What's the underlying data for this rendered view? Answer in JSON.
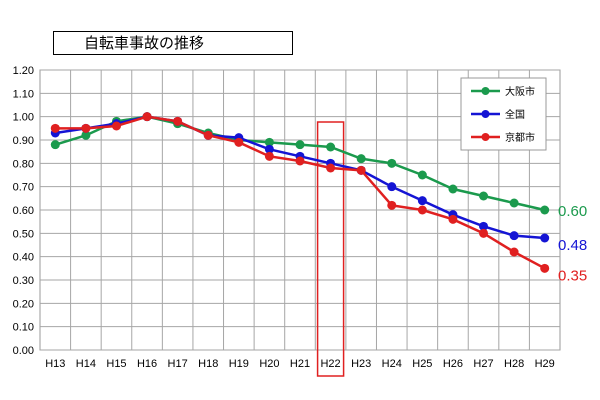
{
  "chart_data": {
    "type": "line",
    "title": "自転車事故の推移",
    "categories": [
      "H13",
      "H14",
      "H15",
      "H16",
      "H17",
      "H18",
      "H19",
      "H20",
      "H21",
      "H22",
      "H23",
      "H24",
      "H25",
      "H26",
      "H27",
      "H28",
      "H29"
    ],
    "ylim": [
      0,
      1.2
    ],
    "yticks": [
      "0.00",
      "0.10",
      "0.20",
      "0.30",
      "0.40",
      "0.50",
      "0.60",
      "0.70",
      "0.80",
      "0.90",
      "1.00",
      "1.10",
      "1.20"
    ],
    "grid": true,
    "legend_position": "top-right",
    "highlight_category": "H22",
    "series": [
      {
        "name": "大阪市",
        "color": "#1b9a4d",
        "end_label": "0.60",
        "values": [
          0.88,
          0.92,
          0.98,
          1.0,
          0.97,
          0.93,
          0.9,
          0.89,
          0.88,
          0.87,
          0.82,
          0.8,
          0.75,
          0.69,
          0.66,
          0.63,
          0.6
        ]
      },
      {
        "name": "全国",
        "color": "#1414d4",
        "end_label": "0.48",
        "values": [
          0.93,
          0.95,
          0.97,
          1.0,
          0.98,
          0.92,
          0.91,
          0.86,
          0.83,
          0.8,
          0.77,
          0.7,
          0.64,
          0.58,
          0.53,
          0.49,
          0.48
        ]
      },
      {
        "name": "京都市",
        "color": "#e02020",
        "end_label": "0.35",
        "values": [
          0.95,
          0.95,
          0.96,
          1.0,
          0.98,
          0.92,
          0.89,
          0.83,
          0.81,
          0.78,
          0.77,
          0.62,
          0.6,
          0.56,
          0.5,
          0.42,
          0.35
        ]
      }
    ]
  }
}
